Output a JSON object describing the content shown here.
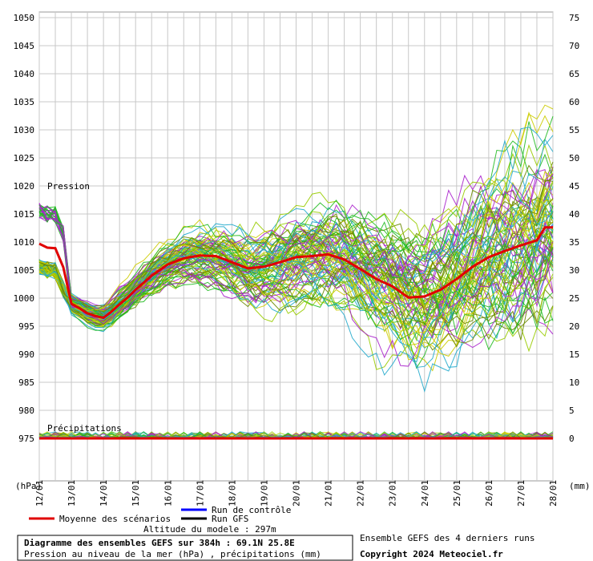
{
  "chart_data": {
    "type": "line",
    "title": "Diagramme des ensembles GEFS sur 384h : 69.1N 25.8E",
    "subtitle": "Pression au niveau de la mer (hPa) , précipitations (mm)",
    "left_unit": "(hPa)",
    "right_unit": "(mm)",
    "pressure_label": "Pression",
    "precip_label": "Précipitations",
    "pressure_ticks": [
      975,
      980,
      985,
      990,
      995,
      1000,
      1005,
      1010,
      1015,
      1020,
      1025,
      1030,
      1035,
      1040,
      1045,
      1050
    ],
    "precip_ticks": [
      0,
      5,
      10,
      15,
      20,
      25,
      30,
      35,
      40,
      45,
      50,
      55,
      60,
      65,
      70,
      75
    ],
    "x_ticks": [
      "12/01",
      "13/01",
      "14/01",
      "15/01",
      "16/01",
      "17/01",
      "18/01",
      "19/01",
      "20/01",
      "21/01",
      "22/01",
      "23/01",
      "24/01",
      "25/01",
      "26/01",
      "27/01",
      "28/01"
    ],
    "grid": true,
    "series": [
      {
        "name": "Moyenne des scénarios",
        "color": "#e00000",
        "x": [
          0,
          0.25,
          0.5,
          0.75,
          1,
          1.25,
          1.5,
          1.75,
          2,
          2.25,
          2.5,
          2.75,
          3,
          3.5,
          4,
          4.5,
          5,
          5.5,
          6,
          6.5,
          7,
          7.5,
          8,
          8.5,
          9,
          9.5,
          10,
          10.5,
          11,
          11.5,
          12,
          12.5,
          13,
          13.5,
          14,
          14.5,
          15,
          15.5,
          15.75,
          16
        ],
        "values": [
          1009.7,
          1009,
          1008.9,
          1005.5,
          999,
          998.2,
          997.3,
          996.8,
          996.5,
          997.6,
          998.9,
          1000.1,
          1001.5,
          1004,
          1006,
          1007.1,
          1007.6,
          1007.5,
          1006.4,
          1005.3,
          1005.6,
          1006.4,
          1007.3,
          1007.5,
          1007.8,
          1006.9,
          1005.2,
          1003.4,
          1002.1,
          1000.1,
          1000.3,
          1001.5,
          1003.4,
          1005.6,
          1007.3,
          1008.4,
          1009.4,
          1010.3,
          1012.6,
          1012.6
        ]
      }
    ],
    "ensemble_description": "Ensemble GEFS des 4 derniers runs",
    "legend": {
      "control": "Run de contrôle",
      "gfs": "Run GFS",
      "mean": "Moyenne des scénarios",
      "control_color": "#0000ff",
      "gfs_color": "#000000",
      "mean_color": "#e00000"
    },
    "model_altitude": "Altitude du modele : 297m",
    "copyright": "Copyright 2024 Meteociel.fr",
    "ensemble_colors": [
      "#22bb22",
      "#99cc00",
      "#cccc00",
      "#aa22cc",
      "#22aacc",
      "#6c8a00"
    ]
  }
}
